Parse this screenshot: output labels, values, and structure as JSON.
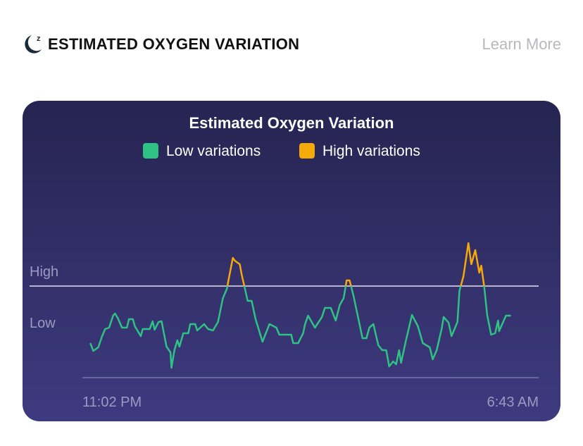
{
  "header": {
    "title": "ESTIMATED OXYGEN VARIATION",
    "learn_more": "Learn More",
    "icon": "moon-sleep-icon"
  },
  "colors": {
    "low": "#2fc285",
    "high": "#f5a90a",
    "card_top": "#262451",
    "card_bottom": "#3e3a80"
  },
  "chart_data": {
    "type": "line",
    "title": "Estimated Oxygen Variation",
    "legend": [
      {
        "label": "Low variations",
        "color": "#2fc285"
      },
      {
        "label": "High variations",
        "color": "#f5a90a"
      }
    ],
    "legend_placement": "top-center",
    "y_labels": {
      "high": "High",
      "low": "Low"
    },
    "high_threshold": 130,
    "low_level": 78,
    "ylim": [
      0,
      200
    ],
    "x_ticks": [
      "11:02 PM",
      "6:43 AM"
    ],
    "xlim": [
      "23:02",
      "06:43"
    ],
    "grid": false,
    "points": [
      [
        "23:10",
        49
      ],
      [
        "23:13",
        38
      ],
      [
        "23:18",
        43
      ],
      [
        "23:22",
        59
      ],
      [
        "23:25",
        69
      ],
      [
        "23:29",
        71
      ],
      [
        "23:33",
        88
      ],
      [
        "23:35",
        91
      ],
      [
        "23:38",
        84
      ],
      [
        "23:42",
        71
      ],
      [
        "23:47",
        71
      ],
      [
        "23:49",
        83
      ],
      [
        "23:53",
        83
      ],
      [
        "23:55",
        73
      ],
      [
        "00:01",
        59
      ],
      [
        "00:03",
        69
      ],
      [
        "00:10",
        69
      ],
      [
        "00:13",
        80
      ],
      [
        "00:15",
        68
      ],
      [
        "00:19",
        79
      ],
      [
        "00:22",
        80
      ],
      [
        "00:27",
        44
      ],
      [
        "00:31",
        36
      ],
      [
        "00:32",
        14
      ],
      [
        "00:35",
        39
      ],
      [
        "00:38",
        53
      ],
      [
        "00:40",
        44
      ],
      [
        "00:44",
        63
      ],
      [
        "00:49",
        63
      ],
      [
        "00:51",
        76
      ],
      [
        "00:56",
        76
      ],
      [
        "00:58",
        67
      ],
      [
        "01:05",
        76
      ],
      [
        "01:09",
        69
      ],
      [
        "01:14",
        67
      ],
      [
        "01:19",
        79
      ],
      [
        "01:24",
        113
      ],
      [
        "01:28",
        126
      ],
      [
        "01:30",
        141
      ],
      [
        "01:34",
        170
      ],
      [
        "01:36",
        166
      ],
      [
        "01:41",
        161
      ],
      [
        "01:43",
        146
      ],
      [
        "01:46",
        128
      ],
      [
        "01:49",
        109
      ],
      [
        "01:53",
        109
      ],
      [
        "01:57",
        83
      ],
      [
        "02:04",
        51
      ],
      [
        "02:11",
        76
      ],
      [
        "02:18",
        71
      ],
      [
        "02:21",
        61
      ],
      [
        "02:33",
        61
      ],
      [
        "02:35",
        49
      ],
      [
        "02:40",
        49
      ],
      [
        "02:45",
        63
      ],
      [
        "02:47",
        76
      ],
      [
        "02:50",
        88
      ],
      [
        "02:57",
        71
      ],
      [
        "03:04",
        86
      ],
      [
        "03:07",
        99
      ],
      [
        "03:13",
        99
      ],
      [
        "03:18",
        81
      ],
      [
        "03:22",
        103
      ],
      [
        "03:26",
        113
      ],
      [
        "03:29",
        138
      ],
      [
        "03:32",
        138
      ],
      [
        "03:36",
        116
      ],
      [
        "03:42",
        76
      ],
      [
        "03:45",
        56
      ],
      [
        "03:49",
        56
      ],
      [
        "03:52",
        71
      ],
      [
        "03:56",
        76
      ],
      [
        "04:01",
        46
      ],
      [
        "04:05",
        39
      ],
      [
        "04:09",
        39
      ],
      [
        "04:12",
        16
      ],
      [
        "04:16",
        23
      ],
      [
        "04:19",
        19
      ],
      [
        "04:22",
        39
      ],
      [
        "04:24",
        21
      ],
      [
        "04:29",
        53
      ],
      [
        "04:35",
        89
      ],
      [
        "04:41",
        73
      ],
      [
        "04:46",
        49
      ],
      [
        "04:53",
        43
      ],
      [
        "04:56",
        26
      ],
      [
        "05:00",
        39
      ],
      [
        "05:05",
        69
      ],
      [
        "05:07",
        86
      ],
      [
        "05:12",
        78
      ],
      [
        "05:15",
        59
      ],
      [
        "05:21",
        79
      ],
      [
        "05:23",
        123
      ],
      [
        "05:27",
        144
      ],
      [
        "05:32",
        191
      ],
      [
        "05:35",
        161
      ],
      [
        "05:39",
        181
      ],
      [
        "05:43",
        149
      ],
      [
        "05:45",
        159
      ],
      [
        "05:48",
        129
      ],
      [
        "05:51",
        89
      ],
      [
        "05:55",
        61
      ],
      [
        "05:59",
        63
      ],
      [
        "06:02",
        81
      ],
      [
        "06:03",
        66
      ],
      [
        "06:10",
        88
      ],
      [
        "06:15",
        88
      ]
    ]
  }
}
